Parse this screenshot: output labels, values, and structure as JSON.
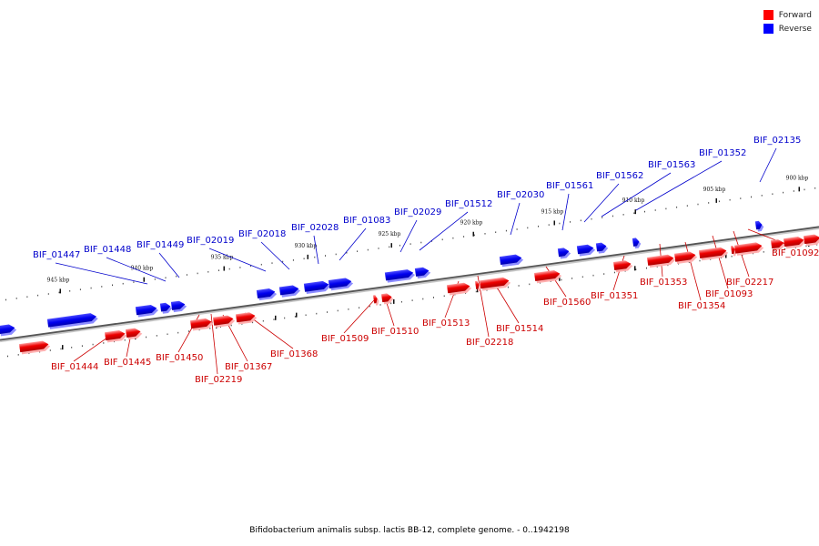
{
  "legend": {
    "forward_label": "Forward",
    "reverse_label": "Reverse",
    "forward_color": "#ff0000",
    "reverse_color": "#0000ff"
  },
  "caption": "Bifidobacterium animalis subsp. lactis BB-12, complete genome. - 0..1942198",
  "axis": {
    "tick_labels": [
      "945 kbp",
      "940 kbp",
      "935 kbp",
      "930 kbp",
      "925 kbp",
      "920 kbp",
      "915 kbp",
      "910 kbp",
      "905 kbp",
      "900 kbp"
    ]
  },
  "genes": {
    "reverse": [
      "BIF_01447",
      "BIF_01448",
      "BIF_01449",
      "BIF_02019",
      "BIF_02018",
      "BIF_02028",
      "BIF_01083",
      "BIF_02029",
      "BIF_01512",
      "BIF_02030",
      "BIF_01561",
      "BIF_01562",
      "BIF_01563",
      "BIF_01352",
      "BIF_02135"
    ],
    "forward": [
      "BIF_01444",
      "BIF_01445",
      "BIF_01450",
      "BIF_02219",
      "BIF_01367",
      "BIF_01368",
      "BIF_01509",
      "BIF_01510",
      "BIF_01513",
      "BIF_02218",
      "BIF_01514",
      "BIF_01560",
      "BIF_01351",
      "BIF_01353",
      "BIF_01354",
      "BIF_01093",
      "BIF_02217",
      "BIF_01092"
    ]
  }
}
